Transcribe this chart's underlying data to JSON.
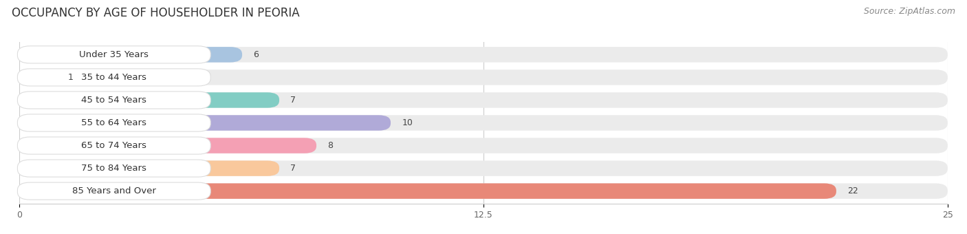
{
  "title": "OCCUPANCY BY AGE OF HOUSEHOLDER IN PEORIA",
  "source": "Source: ZipAtlas.com",
  "categories": [
    "Under 35 Years",
    "35 to 44 Years",
    "45 to 54 Years",
    "55 to 64 Years",
    "65 to 74 Years",
    "75 to 84 Years",
    "85 Years and Over"
  ],
  "values": [
    6,
    1,
    7,
    10,
    8,
    7,
    22
  ],
  "bar_colors": [
    "#a8c4e0",
    "#c9a8d4",
    "#82cdc4",
    "#b0aad8",
    "#f4a0b4",
    "#f9c89c",
    "#e88878"
  ],
  "xlim": [
    0,
    25
  ],
  "xticks": [
    0,
    12.5,
    25
  ],
  "background_color": "#f5f5f5",
  "bar_background_color": "#ebebeb",
  "title_fontsize": 12,
  "source_fontsize": 9,
  "label_fontsize": 9.5,
  "value_fontsize": 9
}
